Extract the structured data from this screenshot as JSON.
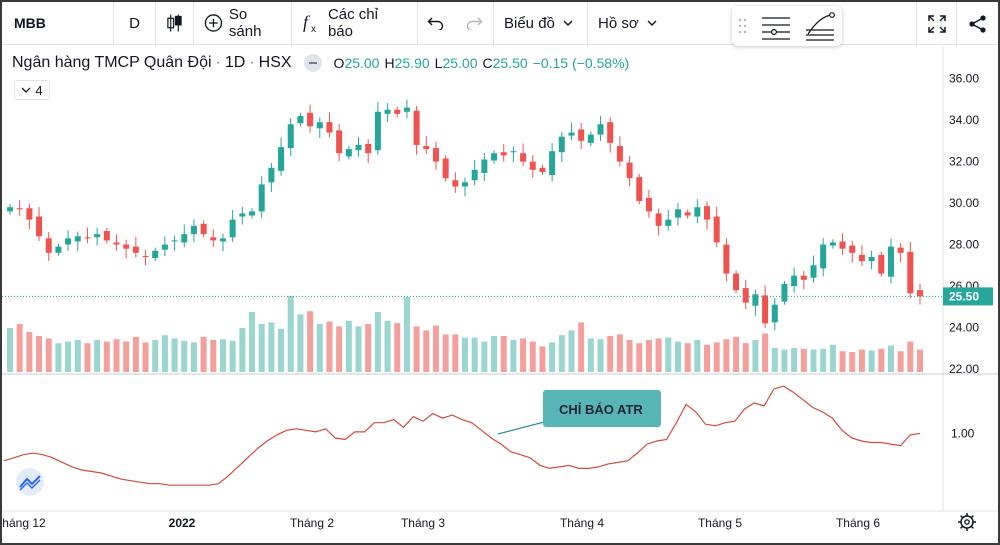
{
  "toolbar": {
    "symbol": "MBB",
    "interval": "D",
    "compare_label": "So sánh",
    "indicators_label": "Các chỉ báo",
    "charttype_label": "Biểu đồ",
    "profile_label": "Hồ sơ"
  },
  "legend": {
    "name": "Ngân hàng TMCP Quân Đội",
    "interval": "1D",
    "exchange": "HSX",
    "o_key": "O",
    "o_val": "25.00",
    "h_key": "H",
    "h_val": "25.90",
    "l_key": "L",
    "l_val": "25.00",
    "c_key": "C",
    "c_val": "25.50",
    "change": "−0.15 (−0.58%)",
    "indicator_count": "4"
  },
  "colors": {
    "up": "#26a69a",
    "down": "#ef5350",
    "vol_up": "#9ad5cf",
    "vol_down": "#f3a09d",
    "atr_line": "#d24b3f",
    "badge": "#57b6b5"
  },
  "chart_data": [
    {
      "type": "candlestick",
      "title": "Ngân hàng TMCP Quân Đội · 1D · HSX",
      "y_ticks": [
        "36.00",
        "34.00",
        "32.00",
        "30.00",
        "28.00",
        "26.00",
        "24.00",
        "22.00"
      ],
      "ylim": [
        22,
        36.8
      ],
      "last_price_label": "25.50",
      "x_labels": [
        "háng 12",
        "2022",
        "Tháng 2",
        "Tháng 3",
        "Tháng 4",
        "Tháng 5",
        "Tháng 6"
      ],
      "closes": [
        29.8,
        29.7,
        29.2,
        28.4,
        27.6,
        27.9,
        28.3,
        28.4,
        28.3,
        28.5,
        28.2,
        28.0,
        27.8,
        27.6,
        27.4,
        27.7,
        28.0,
        28.2,
        28.5,
        28.9,
        28.5,
        28.2,
        28.3,
        29.2,
        29.5,
        29.6,
        30.9,
        31.7,
        32.7,
        33.8,
        34.2,
        33.7,
        33.9,
        33.4,
        32.4,
        32.6,
        32.8,
        32.4,
        34.4,
        34.5,
        34.3,
        34.6,
        32.8,
        32.6,
        32.0,
        31.2,
        30.8,
        31.0,
        31.6,
        32.1,
        32.4,
        32.3,
        32.5,
        32.0,
        31.6,
        31.5,
        32.5,
        33.2,
        33.4,
        33.0,
        33.3,
        33.8,
        32.9,
        32.0,
        31.2,
        30.1,
        29.6,
        28.9,
        29.2,
        29.7,
        29.4,
        29.8,
        29.2,
        28.1,
        26.6,
        25.8,
        25.2,
        25.6,
        24.2,
        25.1,
        26.1,
        26.5,
        26.3,
        27.0,
        28.0,
        28.1,
        27.8,
        27.6,
        27.2,
        27.4,
        26.6,
        27.9,
        27.6,
        25.65,
        25.5
      ],
      "volumes": [
        0.55,
        0.6,
        0.5,
        0.45,
        0.42,
        0.36,
        0.38,
        0.4,
        0.36,
        0.4,
        0.38,
        0.41,
        0.38,
        0.44,
        0.37,
        0.4,
        0.46,
        0.42,
        0.39,
        0.37,
        0.44,
        0.4,
        0.41,
        0.39,
        0.55,
        0.75,
        0.6,
        0.62,
        0.54,
        0.95,
        0.72,
        0.76,
        0.6,
        0.63,
        0.57,
        0.64,
        0.57,
        0.6,
        0.75,
        0.64,
        0.61,
        0.94,
        0.57,
        0.52,
        0.58,
        0.47,
        0.47,
        0.43,
        0.43,
        0.38,
        0.45,
        0.45,
        0.4,
        0.42,
        0.38,
        0.32,
        0.37,
        0.46,
        0.52,
        0.62,
        0.42,
        0.41,
        0.45,
        0.47,
        0.4,
        0.36,
        0.4,
        0.42,
        0.43,
        0.38,
        0.36,
        0.4,
        0.34,
        0.37,
        0.41,
        0.44,
        0.36,
        0.4,
        0.48,
        0.3,
        0.28,
        0.3,
        0.29,
        0.28,
        0.29,
        0.34,
        0.26,
        0.25,
        0.28,
        0.27,
        0.29,
        0.33,
        0.26,
        0.38,
        0.28
      ]
    },
    {
      "type": "line",
      "title": "ATR",
      "y_ticks": [
        "1.00"
      ],
      "ylim": [
        0.55,
        1.35
      ],
      "values": [
        0.82,
        0.84,
        0.86,
        0.87,
        0.86,
        0.84,
        0.81,
        0.78,
        0.76,
        0.75,
        0.74,
        0.72,
        0.7,
        0.69,
        0.68,
        0.67,
        0.67,
        0.66,
        0.66,
        0.66,
        0.66,
        0.66,
        0.67,
        0.72,
        0.78,
        0.84,
        0.9,
        0.95,
        0.99,
        1.02,
        1.03,
        1.02,
        1.01,
        1.03,
        0.97,
        0.96,
        1.01,
        1.01,
        1.07,
        1.07,
        1.09,
        1.04,
        1.11,
        1.08,
        1.13,
        1.1,
        1.12,
        1.09,
        1.07,
        1.02,
        0.97,
        0.93,
        0.88,
        0.86,
        0.84,
        0.79,
        0.77,
        0.78,
        0.79,
        0.77,
        0.77,
        0.78,
        0.8,
        0.81,
        0.82,
        0.87,
        0.93,
        0.95,
        0.96,
        1.07,
        1.19,
        1.14,
        1.06,
        1.05,
        1.07,
        1.08,
        1.16,
        1.2,
        1.18,
        1.29,
        1.31,
        1.27,
        1.22,
        1.17,
        1.14,
        1.1,
        1.02,
        0.97,
        0.95,
        0.94,
        0.94,
        0.93,
        0.92,
        0.99,
        1.0
      ],
      "annotation": "CHỈ BÁO ATR"
    }
  ]
}
